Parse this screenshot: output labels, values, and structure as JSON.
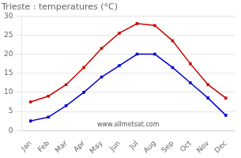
{
  "chart_data": {
    "type": "line",
    "title": "Trieste : temperatures (°C)",
    "categories": [
      "Jan",
      "Feb",
      "Mar",
      "Apr",
      "May",
      "Jun",
      "Jul",
      "Aug",
      "Sep",
      "Oct",
      "Nov",
      "Dec"
    ],
    "series": [
      {
        "color": "#cc0000",
        "marker": "square",
        "values": [
          7.5,
          9.0,
          12.0,
          16.5,
          21.5,
          25.5,
          28.0,
          27.5,
          23.5,
          17.5,
          12.0,
          8.5
        ]
      },
      {
        "color": "#0000cc",
        "marker": "square",
        "values": [
          2.5,
          3.5,
          6.5,
          10.0,
          14.0,
          17.0,
          20.0,
          20.0,
          16.5,
          12.5,
          8.5,
          4.0
        ]
      }
    ],
    "ylim": [
      0,
      30
    ],
    "yticks": [
      0,
      5,
      10,
      15,
      20,
      25,
      30
    ],
    "grid": "y",
    "annotation": "www.allmetsat.com"
  }
}
